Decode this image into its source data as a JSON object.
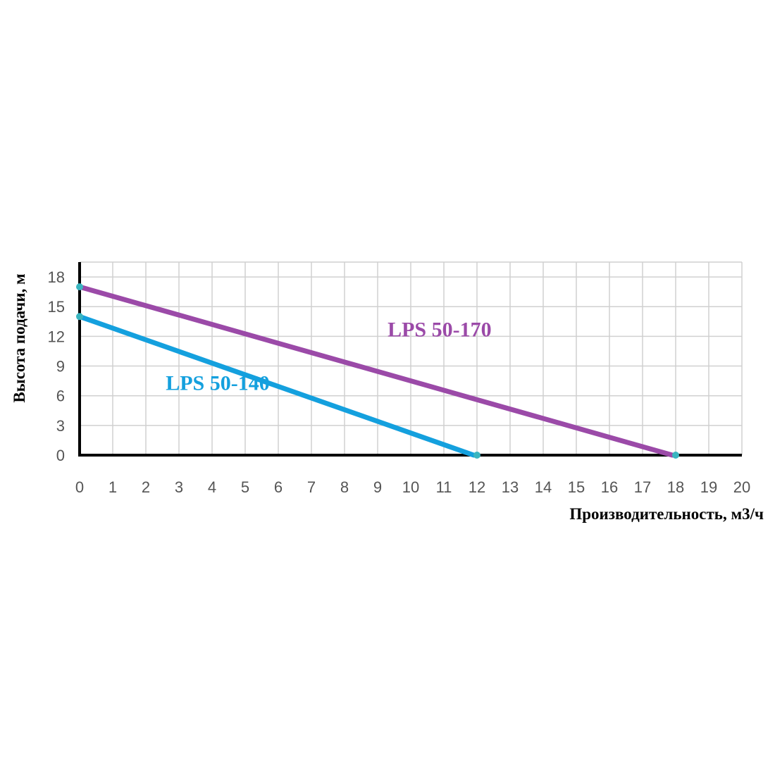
{
  "chart_data": {
    "type": "line",
    "title": "",
    "xlabel": "Производительность, м3/ч",
    "ylabel": "Высота подачи, м",
    "xlim": [
      0,
      20
    ],
    "ylim": [
      0,
      19.5
    ],
    "x_ticks": [
      0,
      1,
      2,
      3,
      4,
      5,
      6,
      7,
      8,
      9,
      10,
      11,
      12,
      13,
      14,
      15,
      16,
      17,
      18,
      19,
      20
    ],
    "y_ticks": [
      0,
      3,
      6,
      9,
      12,
      15,
      18
    ],
    "grid": true,
    "series": [
      {
        "name": "LPS 50-170",
        "color": "#9b4aa8",
        "points": [
          [
            0,
            17
          ],
          [
            17.9,
            0
          ]
        ],
        "label_at": [
          9.3,
          12
        ]
      },
      {
        "name": "LPS 50-140",
        "color": "#14a0de",
        "points": [
          [
            0,
            14
          ],
          [
            11.9,
            0
          ]
        ],
        "label_at": [
          2.6,
          6.6
        ]
      }
    ],
    "markers": {
      "color": "#3ab5c0",
      "points": [
        [
          0,
          17
        ],
        [
          0,
          14
        ],
        [
          12,
          0
        ],
        [
          18,
          0
        ]
      ]
    }
  }
}
